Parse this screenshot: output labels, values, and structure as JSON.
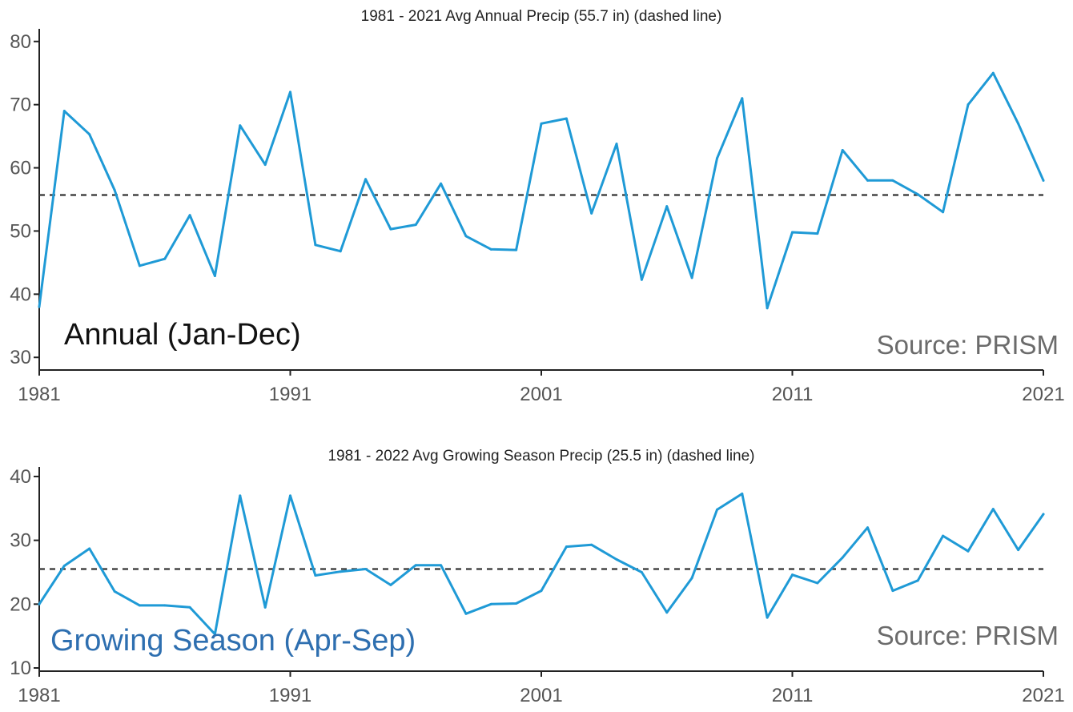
{
  "chart_data": [
    {
      "type": "line",
      "title": "1981 - 2021 Avg Annual Precip (55.7 in) (dashed line)",
      "overlay_label": "Annual (Jan-Dec)",
      "source": "Source: PRISM",
      "xlabel": "",
      "ylabel": "",
      "xlim": [
        1981,
        2021
      ],
      "ylim": [
        28,
        82
      ],
      "x_ticks": [
        1981,
        1991,
        2001,
        2011,
        2021
      ],
      "y_ticks": [
        30,
        40,
        50,
        60,
        70,
        80
      ],
      "reference_line": 55.7,
      "grid": false,
      "color": "#1f9ad6",
      "x": [
        1981,
        1982,
        1983,
        1984,
        1985,
        1986,
        1987,
        1988,
        1989,
        1990,
        1991,
        1992,
        1993,
        1994,
        1995,
        1996,
        1997,
        1998,
        1999,
        2000,
        2001,
        2002,
        2003,
        2004,
        2005,
        2006,
        2007,
        2008,
        2009,
        2010,
        2011,
        2012,
        2013,
        2014,
        2015,
        2016,
        2017,
        2018,
        2019,
        2020,
        2021
      ],
      "values": [
        38,
        69,
        65.3,
        56.5,
        44.5,
        45.6,
        52.5,
        42.9,
        66.7,
        60.5,
        72,
        47.8,
        46.8,
        58.2,
        50.3,
        51,
        57.5,
        49.2,
        47.1,
        47,
        67,
        67.8,
        52.8,
        63.8,
        42.3,
        53.9,
        42.6,
        61.5,
        71,
        37.8,
        49.8,
        49.6,
        62.8,
        58,
        58,
        55.8,
        53,
        70,
        75,
        67,
        58
      ]
    },
    {
      "type": "line",
      "title": "1981 - 2022 Avg Growing Season Precip (25.5 in) (dashed line)",
      "overlay_label": "Growing Season (Apr-Sep)",
      "source": "Source: PRISM",
      "xlabel": "",
      "ylabel": "",
      "xlim": [
        1981,
        2021
      ],
      "ylim": [
        9.5,
        41.5
      ],
      "x_ticks": [
        1981,
        1991,
        2001,
        2011,
        2021
      ],
      "y_ticks": [
        10,
        20,
        30,
        40
      ],
      "reference_line": 25.5,
      "grid": false,
      "color": "#1f9ad6",
      "x": [
        1981,
        1982,
        1983,
        1984,
        1985,
        1986,
        1987,
        1988,
        1989,
        1990,
        1991,
        1992,
        1993,
        1994,
        1995,
        1996,
        1997,
        1998,
        1999,
        2000,
        2001,
        2002,
        2003,
        2004,
        2005,
        2006,
        2007,
        2008,
        2009,
        2010,
        2011,
        2012,
        2013,
        2014,
        2015,
        2016,
        2017,
        2018,
        2019,
        2020,
        2021
      ],
      "values": [
        20,
        26,
        28.7,
        22,
        19.8,
        19.8,
        19.5,
        15.3,
        37,
        19.5,
        37,
        24.5,
        25.1,
        25.5,
        23,
        26.1,
        26.1,
        18.5,
        20,
        20.1,
        22.1,
        29,
        29.3,
        27,
        25,
        18.7,
        24.1,
        34.8,
        37.3,
        17.9,
        24.6,
        23.3,
        27.3,
        32,
        22.1,
        23.7,
        30.7,
        28.3,
        34.9,
        28.5,
        34.1
      ]
    }
  ]
}
